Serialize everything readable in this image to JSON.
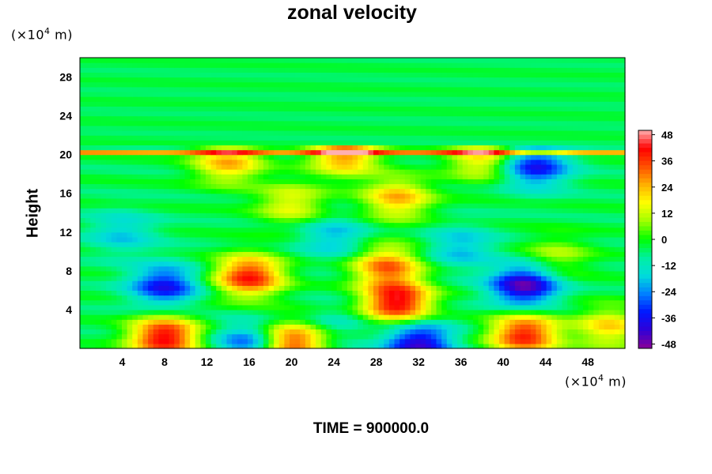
{
  "chart_data": {
    "type": "heatmap",
    "title": "zonal velocity",
    "xlabel": "",
    "ylabel": "Height",
    "x_unit_prefix": "(×10",
    "x_unit_exp": "4",
    "x_unit_suffix": " m)",
    "y_unit_prefix": "(×10",
    "y_unit_exp": "4",
    "y_unit_suffix": " m)",
    "xlim": [
      0,
      51.5
    ],
    "ylim": [
      0,
      30
    ],
    "x_ticks": [
      "4",
      "8",
      "12",
      "16",
      "20",
      "24",
      "28",
      "32",
      "36",
      "40",
      "44",
      "48"
    ],
    "y_ticks": [
      "4",
      "8",
      "12",
      "16",
      "20",
      "24",
      "28"
    ],
    "colorbar_range": [
      -50,
      50
    ],
    "colorbar_ticks": [
      "48",
      "36",
      "24",
      "12",
      "0",
      "-12",
      "-24",
      "-36",
      "-48"
    ],
    "colormap": [
      "#8a0096",
      "#3000d8",
      "#0018ff",
      "#0080ff",
      "#00dcdc",
      "#00f0a0",
      "#00ff00",
      "#a0ff00",
      "#ffff00",
      "#ffb000",
      "#ff5000",
      "#ff0000",
      "#ffb0b0"
    ],
    "background_value": -4,
    "features": [
      {
        "x": 8,
        "y": 6.5,
        "value": -36
      },
      {
        "x": 16,
        "y": 7.5,
        "value": 40
      },
      {
        "x": 8,
        "y": 1.2,
        "value": 44
      },
      {
        "x": 20,
        "y": 0.6,
        "value": 38
      },
      {
        "x": 30,
        "y": 4.8,
        "value": 44
      },
      {
        "x": 29,
        "y": 8.5,
        "value": 30
      },
      {
        "x": 32,
        "y": 0.6,
        "value": -42
      },
      {
        "x": 16,
        "y": 0.6,
        "value": -30
      },
      {
        "x": 42,
        "y": 6.5,
        "value": -46
      },
      {
        "x": 42,
        "y": 1.5,
        "value": 40
      },
      {
        "x": 50,
        "y": 2.2,
        "value": 20
      },
      {
        "x": 43,
        "y": 18.8,
        "value": -36
      },
      {
        "x": 30,
        "y": 15.5,
        "value": 24
      },
      {
        "x": 14,
        "y": 19.2,
        "value": 24
      },
      {
        "x": 25,
        "y": 20.1,
        "value": 30
      },
      {
        "x": 24,
        "y": 11.5,
        "value": -20
      },
      {
        "x": 36,
        "y": 10.5,
        "value": -20
      },
      {
        "x": 45,
        "y": 9.5,
        "value": 10
      },
      {
        "x": 38,
        "y": 19.6,
        "value": 20
      },
      {
        "x": 20,
        "y": 15,
        "value": 16
      },
      {
        "x": 4,
        "y": 12,
        "value": -18
      },
      {
        "x": 24,
        "y": 2.5,
        "value": -12
      }
    ],
    "grid": false,
    "legend": "colorbar-right"
  },
  "footer": {
    "time_label": "TIME = 900000.0"
  }
}
